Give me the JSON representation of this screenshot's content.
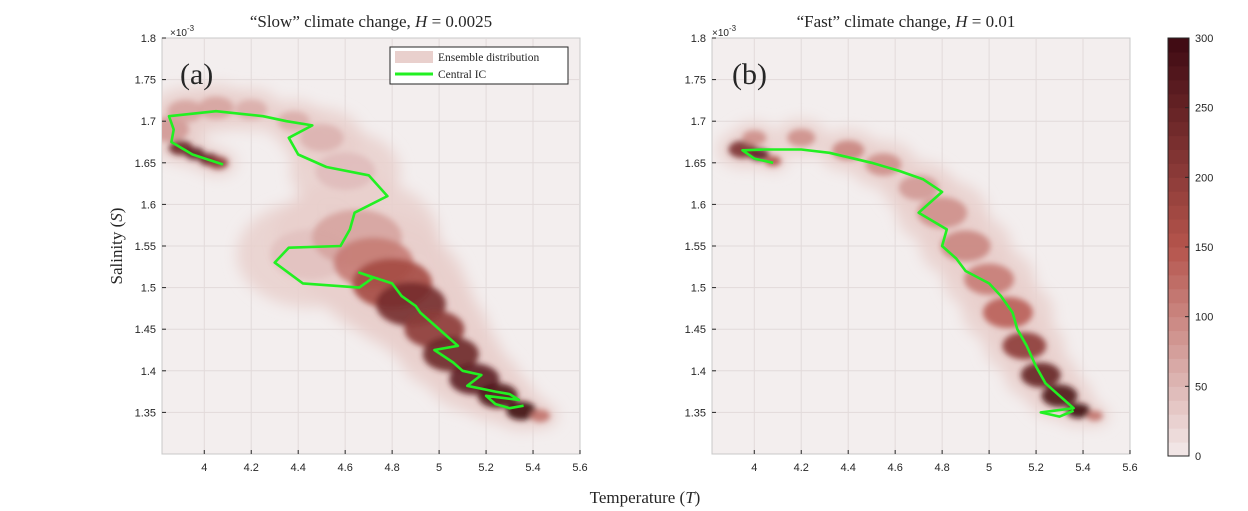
{
  "figure": {
    "xlabel_prefix": "Temperature (",
    "xlabel_var": "T",
    "xlabel_suffix": ")",
    "ylabel_prefix": "Salinity (",
    "ylabel_var": "S",
    "ylabel_suffix": ")",
    "exponent_base": "×10",
    "exponent_power": "-3"
  },
  "panels": [
    {
      "id": "a",
      "panel_label": "(a)",
      "title_text": "“Slow” climate change, ",
      "title_var": "H",
      "title_value": " = 0.0025",
      "legend": {
        "entries": [
          "Ensemble distribution",
          "Central IC"
        ]
      }
    },
    {
      "id": "b",
      "panel_label": "(b)",
      "title_text": "“Fast” climate change, ",
      "title_var": "H",
      "title_value": " = 0.01",
      "legend": null
    }
  ],
  "colorbar": {
    "ticks": [
      0,
      50,
      100,
      150,
      200,
      250,
      300
    ],
    "tick_labels": [
      "0",
      "50",
      "100",
      "150",
      "200",
      "250",
      "300"
    ],
    "range": [
      0,
      300
    ],
    "color_low": "#f3eaea",
    "color_high": "#3d0a12"
  },
  "colors": {
    "central_ic_line": "#22f022",
    "ensemble_light": "#e9d0cd",
    "ensemble_mid": "#b5544c",
    "ensemble_dark": "#3d0a12",
    "axes_background": "#f3eeee"
  },
  "chart_data": [
    {
      "type": "heatmap",
      "title": "“Slow” climate change, H = 0.0025",
      "xlabel": "Temperature (T)",
      "ylabel": "Salinity (S)",
      "xlim": [
        3.82,
        5.6
      ],
      "ylim": [
        1.3,
        1.8
      ],
      "y_scale_note": "×10^-3",
      "xticks": [
        4,
        4.2,
        4.4,
        4.6,
        4.8,
        5,
        5.2,
        5.4,
        5.6
      ],
      "yticks": [
        1.35,
        1.4,
        1.45,
        1.5,
        1.55,
        1.6,
        1.65,
        1.7,
        1.75,
        1.8
      ],
      "xtick_labels": [
        "4",
        "4.2",
        "4.4",
        "4.6",
        "4.8",
        "5",
        "5.2",
        "5.4",
        "5.6"
      ],
      "ytick_labels": [
        "1.35",
        "1.4",
        "1.45",
        "1.5",
        "1.55",
        "1.6",
        "1.65",
        "1.7",
        "1.75",
        "1.8"
      ],
      "legend": [
        "Ensemble distribution",
        "Central IC"
      ],
      "ensemble_band": [
        {
          "x": 3.85,
          "y": 1.69,
          "w": 0.02,
          "v": 80
        },
        {
          "x": 3.9,
          "y": 1.668,
          "w": 0.012,
          "v": 240
        },
        {
          "x": 3.96,
          "y": 1.661,
          "w": 0.01,
          "v": 260
        },
        {
          "x": 4.02,
          "y": 1.654,
          "w": 0.01,
          "v": 250
        },
        {
          "x": 4.06,
          "y": 1.65,
          "w": 0.01,
          "v": 200
        },
        {
          "x": 3.92,
          "y": 1.712,
          "w": 0.018,
          "v": 70
        },
        {
          "x": 4.05,
          "y": 1.716,
          "w": 0.018,
          "v": 70
        },
        {
          "x": 4.2,
          "y": 1.714,
          "w": 0.016,
          "v": 60
        },
        {
          "x": 4.38,
          "y": 1.7,
          "w": 0.016,
          "v": 60
        },
        {
          "x": 4.5,
          "y": 1.68,
          "w": 0.022,
          "v": 55
        },
        {
          "x": 4.6,
          "y": 1.64,
          "w": 0.03,
          "v": 45
        },
        {
          "x": 4.45,
          "y": 1.54,
          "w": 0.04,
          "v": 40
        },
        {
          "x": 4.65,
          "y": 1.56,
          "w": 0.045,
          "v": 70
        },
        {
          "x": 4.72,
          "y": 1.53,
          "w": 0.04,
          "v": 110
        },
        {
          "x": 4.8,
          "y": 1.505,
          "w": 0.04,
          "v": 170
        },
        {
          "x": 4.88,
          "y": 1.48,
          "w": 0.035,
          "v": 230
        },
        {
          "x": 4.98,
          "y": 1.45,
          "w": 0.03,
          "v": 200
        },
        {
          "x": 5.05,
          "y": 1.42,
          "w": 0.028,
          "v": 240
        },
        {
          "x": 5.15,
          "y": 1.39,
          "w": 0.025,
          "v": 260
        },
        {
          "x": 5.25,
          "y": 1.37,
          "w": 0.02,
          "v": 280
        },
        {
          "x": 5.35,
          "y": 1.352,
          "w": 0.015,
          "v": 300
        },
        {
          "x": 5.43,
          "y": 1.346,
          "w": 0.01,
          "v": 120
        }
      ],
      "central_ic": {
        "x": [
          4.08,
          3.95,
          3.86,
          3.87,
          3.85,
          4.05,
          4.25,
          4.35,
          4.46,
          4.36,
          4.4,
          4.52,
          4.7,
          4.78,
          4.64,
          4.62,
          4.58,
          4.36,
          4.3,
          4.42,
          4.66,
          4.72,
          4.66,
          4.8,
          4.84,
          4.9,
          4.92,
          4.98,
          5.02,
          5.08,
          4.98,
          5.06,
          5.1,
          5.18,
          5.12,
          5.24,
          5.3,
          5.34,
          5.2,
          5.24,
          5.3,
          5.36
        ],
        "y": [
          1.648,
          1.66,
          1.675,
          1.69,
          1.706,
          1.712,
          1.706,
          1.7,
          1.695,
          1.68,
          1.66,
          1.645,
          1.635,
          1.61,
          1.59,
          1.57,
          1.55,
          1.548,
          1.53,
          1.505,
          1.5,
          1.512,
          1.518,
          1.505,
          1.49,
          1.478,
          1.47,
          1.455,
          1.445,
          1.43,
          1.425,
          1.41,
          1.4,
          1.395,
          1.382,
          1.375,
          1.372,
          1.365,
          1.37,
          1.36,
          1.355,
          1.358
        ]
      }
    },
    {
      "type": "heatmap",
      "title": "“Fast” climate change, H = 0.01",
      "xlabel": "Temperature (T)",
      "ylabel": "Salinity (S)",
      "xlim": [
        3.82,
        5.6
      ],
      "ylim": [
        1.3,
        1.8
      ],
      "y_scale_note": "×10^-3",
      "xticks": [
        4,
        4.2,
        4.4,
        4.6,
        4.8,
        5,
        5.2,
        5.4,
        5.6
      ],
      "yticks": [
        1.35,
        1.4,
        1.45,
        1.5,
        1.55,
        1.6,
        1.65,
        1.7,
        1.75,
        1.8
      ],
      "xtick_labels": [
        "4",
        "4.2",
        "4.4",
        "4.6",
        "4.8",
        "5",
        "5.2",
        "5.4",
        "5.6"
      ],
      "ytick_labels": [
        "1.35",
        "1.4",
        "1.45",
        "1.5",
        "1.55",
        "1.6",
        "1.65",
        "1.7",
        "1.75",
        "1.8"
      ],
      "ensemble_band": [
        {
          "x": 3.95,
          "y": 1.666,
          "w": 0.014,
          "v": 220
        },
        {
          "x": 4.02,
          "y": 1.66,
          "w": 0.01,
          "v": 260
        },
        {
          "x": 4.08,
          "y": 1.652,
          "w": 0.008,
          "v": 160
        },
        {
          "x": 4.0,
          "y": 1.68,
          "w": 0.012,
          "v": 90
        },
        {
          "x": 4.2,
          "y": 1.68,
          "w": 0.014,
          "v": 90
        },
        {
          "x": 4.4,
          "y": 1.665,
          "w": 0.016,
          "v": 100
        },
        {
          "x": 4.55,
          "y": 1.648,
          "w": 0.018,
          "v": 90
        },
        {
          "x": 4.7,
          "y": 1.62,
          "w": 0.02,
          "v": 80
        },
        {
          "x": 4.8,
          "y": 1.59,
          "w": 0.025,
          "v": 90
        },
        {
          "x": 4.9,
          "y": 1.55,
          "w": 0.025,
          "v": 100
        },
        {
          "x": 5.0,
          "y": 1.51,
          "w": 0.025,
          "v": 110
        },
        {
          "x": 5.08,
          "y": 1.47,
          "w": 0.025,
          "v": 140
        },
        {
          "x": 5.15,
          "y": 1.43,
          "w": 0.022,
          "v": 200
        },
        {
          "x": 5.22,
          "y": 1.395,
          "w": 0.02,
          "v": 250
        },
        {
          "x": 5.3,
          "y": 1.37,
          "w": 0.018,
          "v": 280
        },
        {
          "x": 5.38,
          "y": 1.352,
          "w": 0.012,
          "v": 300
        },
        {
          "x": 5.45,
          "y": 1.346,
          "w": 0.008,
          "v": 120
        }
      ],
      "central_ic": {
        "x": [
          4.08,
          4.0,
          3.95,
          4.05,
          4.2,
          4.32,
          4.5,
          4.62,
          4.72,
          4.8,
          4.74,
          4.7,
          4.82,
          4.8,
          4.86,
          4.9,
          5.0,
          5.05,
          5.1,
          5.12,
          5.16,
          5.2,
          5.24,
          5.3,
          5.36,
          5.22,
          5.3,
          5.36
        ],
        "y": [
          1.65,
          1.655,
          1.665,
          1.666,
          1.666,
          1.662,
          1.65,
          1.64,
          1.63,
          1.615,
          1.6,
          1.59,
          1.57,
          1.55,
          1.535,
          1.52,
          1.505,
          1.49,
          1.47,
          1.45,
          1.43,
          1.405,
          1.385,
          1.37,
          1.355,
          1.35,
          1.345,
          1.352
        ]
      }
    }
  ]
}
